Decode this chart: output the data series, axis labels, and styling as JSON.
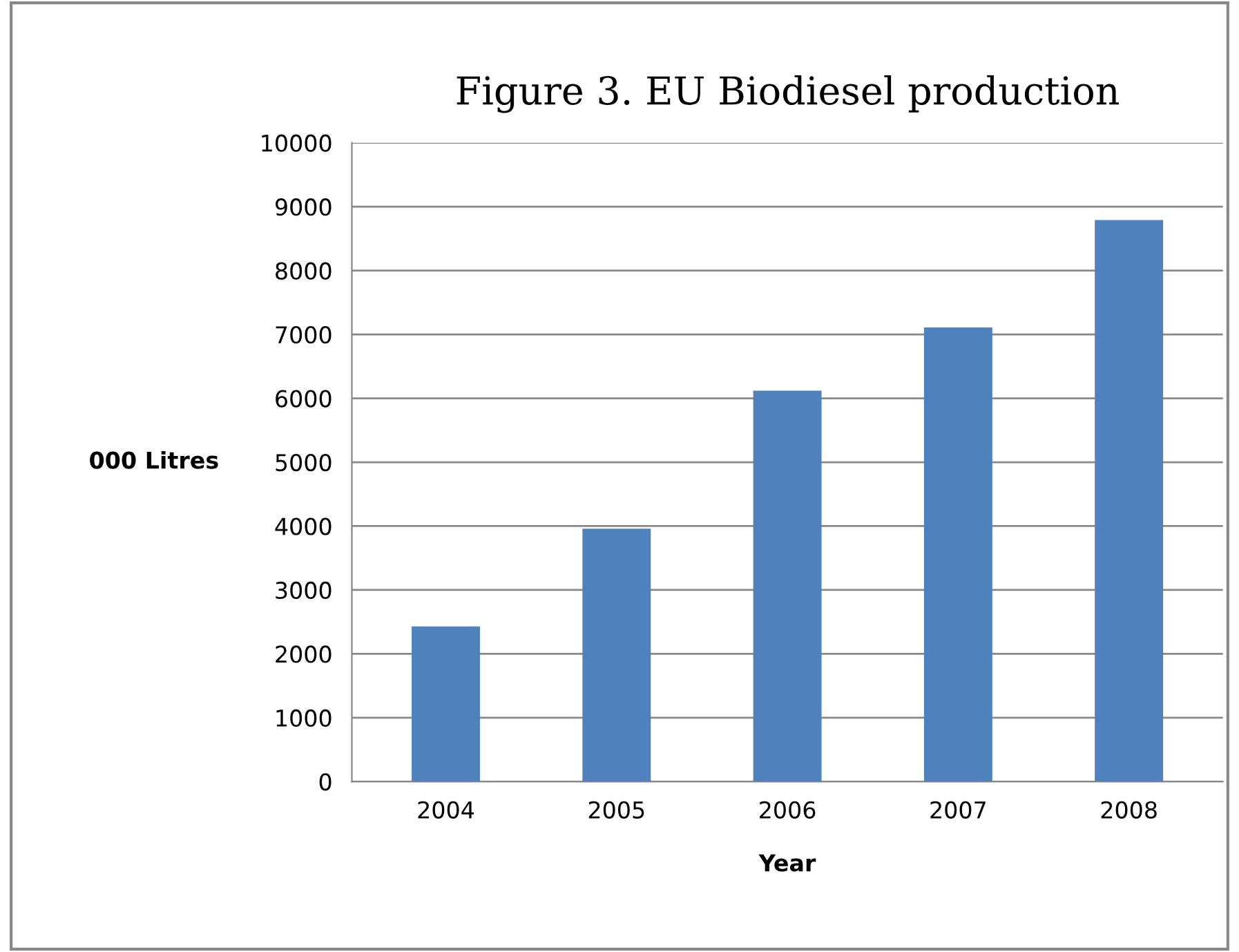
{
  "chart_data": {
    "type": "bar",
    "title": "Figure 3. EU Biodiesel production",
    "xlabel": "Year",
    "ylabel": "000 Litres",
    "categories": [
      "2004",
      "2005",
      "2006",
      "2007",
      "2008"
    ],
    "values": [
      2430,
      3960,
      6120,
      7110,
      8790
    ],
    "color": "#4f81bd",
    "ylim": [
      0,
      10000
    ],
    "yticks": [
      0,
      1000,
      2000,
      3000,
      4000,
      5000,
      6000,
      7000,
      8000,
      9000,
      10000
    ],
    "grid": "y"
  }
}
